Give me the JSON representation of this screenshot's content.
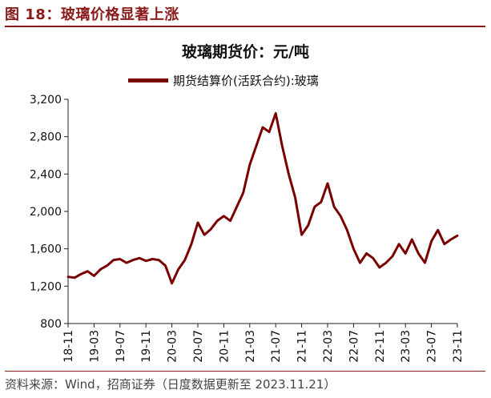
{
  "figure_title": "图 18：玻璃价格显著上涨",
  "source": "资料来源：Wind，招商证券（日度数据更新至 2023.11.21）",
  "colors": {
    "accent": "#8b1a1a",
    "series": "#7a0000"
  },
  "chart_data": {
    "type": "line",
    "title": "玻璃期货价：元/吨",
    "xlabel": "",
    "ylabel": "",
    "ylim": [
      800,
      3200
    ],
    "y_ticks": [
      "800",
      "1,200",
      "1,600",
      "2,000",
      "2,400",
      "2,800",
      "3,200"
    ],
    "x_ticks": [
      "18-11",
      "19-03",
      "19-07",
      "19-11",
      "20-03",
      "20-07",
      "20-11",
      "21-03",
      "21-07",
      "21-11",
      "22-03",
      "22-07",
      "22-11",
      "23-03",
      "23-07",
      "23-11"
    ],
    "legend_position": "top-center",
    "grid": false,
    "series": [
      {
        "name": "期货结算价(活跃合约):玻璃",
        "color": "#7a0000",
        "x": [
          "2018-11",
          "2018-12",
          "2019-01",
          "2019-02",
          "2019-03",
          "2019-04",
          "2019-05",
          "2019-06",
          "2019-07",
          "2019-08",
          "2019-09",
          "2019-10",
          "2019-11",
          "2019-12",
          "2020-01",
          "2020-02",
          "2020-03",
          "2020-04",
          "2020-05",
          "2020-06",
          "2020-07",
          "2020-08",
          "2020-09",
          "2020-10",
          "2020-11",
          "2020-12",
          "2021-01",
          "2021-02",
          "2021-03",
          "2021-04",
          "2021-05",
          "2021-06",
          "2021-07",
          "2021-08",
          "2021-09",
          "2021-10",
          "2021-11",
          "2021-12",
          "2022-01",
          "2022-02",
          "2022-03",
          "2022-04",
          "2022-05",
          "2022-06",
          "2022-07",
          "2022-08",
          "2022-09",
          "2022-10",
          "2022-11",
          "2022-12",
          "2023-01",
          "2023-02",
          "2023-03",
          "2023-04",
          "2023-05",
          "2023-06",
          "2023-07",
          "2023-08",
          "2023-09",
          "2023-10",
          "2023-11"
        ],
        "values": [
          1300,
          1290,
          1330,
          1360,
          1310,
          1380,
          1420,
          1480,
          1490,
          1450,
          1480,
          1500,
          1470,
          1490,
          1480,
          1420,
          1230,
          1380,
          1480,
          1650,
          1880,
          1750,
          1810,
          1900,
          1950,
          1900,
          2050,
          2200,
          2500,
          2700,
          2900,
          2850,
          3050,
          2700,
          2400,
          2150,
          1750,
          1850,
          2050,
          2100,
          2300,
          2050,
          1950,
          1800,
          1600,
          1450,
          1550,
          1500,
          1400,
          1450,
          1520,
          1650,
          1550,
          1700,
          1550,
          1450,
          1680,
          1800,
          1650,
          1700,
          1740
        ]
      }
    ]
  }
}
